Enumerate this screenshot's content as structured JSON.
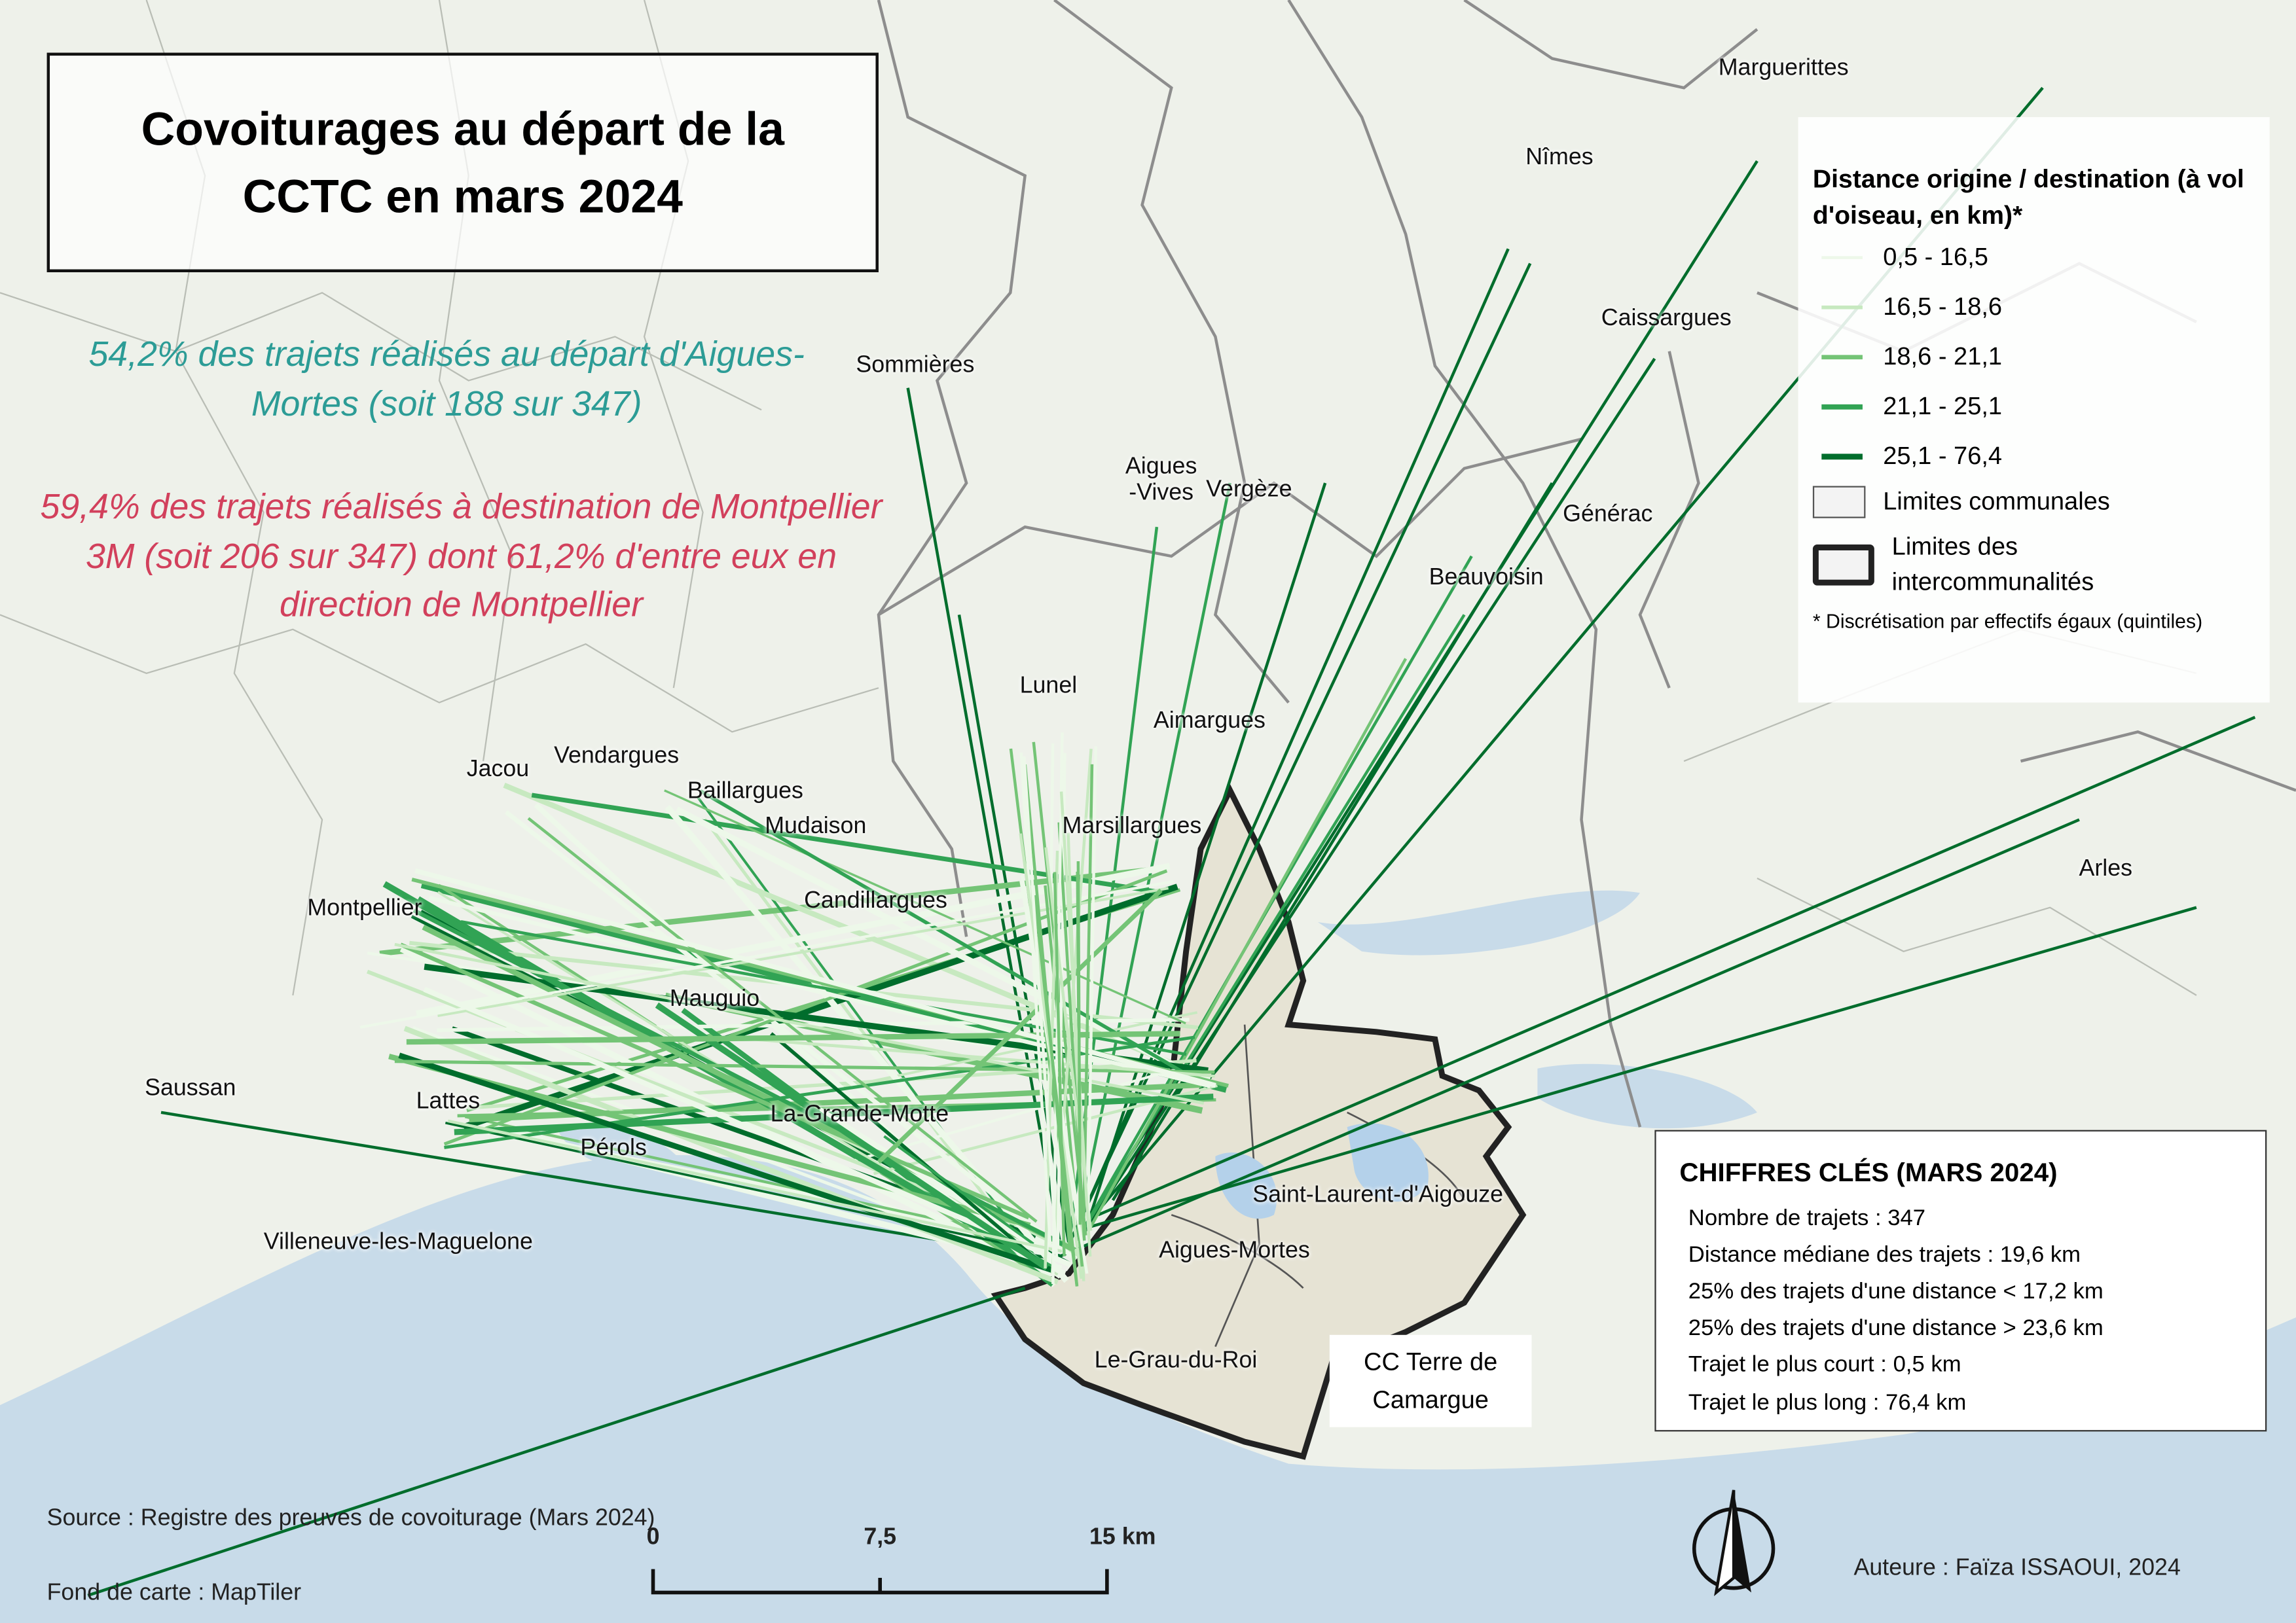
{
  "title": "Covoiturages au départ de la CCTC en mars 2024",
  "highlights": [
    "54,2% des trajets réalisés au départ d'Aigues-Mortes (soit 188 sur 347)",
    "59,4% des trajets réalisés à destination de Montpellier 3M (soit 206 sur 347) dont 61,2% d'entre eux en direction de Montpellier"
  ],
  "places": [
    "Marguerittes",
    "Nîmes",
    "Caissargues",
    "Sommières",
    "Aigues\n-Vives",
    "Vergèze",
    "Générac",
    "Beauvoisin",
    "Lunel",
    "Aimargues",
    "Jacou",
    "Vendargues",
    "Baillargues",
    "Mudaison",
    "Marsillargues",
    "Candillargues",
    "Montpellier",
    "Mauguio",
    "Arles",
    "Saussan",
    "Lattes",
    "La-Grande-Motte",
    "Pérols",
    "Saint-Laurent-d'Aigouze",
    "Aigues-Mortes",
    "Villeneuve-les-Maguelone",
    "Le-Grau-du-Roi"
  ],
  "territory_label": "CC Terre de Camargue",
  "legend": {
    "title": "Distance origine / destination (à vol d'oiseau, en km)*",
    "classes": [
      {
        "label": "0,5 - 16,5",
        "color": "#edf8e9"
      },
      {
        "label": "16,5 - 18,6",
        "color": "#c7e9c0"
      },
      {
        "label": "18,6 - 21,1",
        "color": "#74c476"
      },
      {
        "label": "21,1 - 25,1",
        "color": "#31a354"
      },
      {
        "label": "25,1 - 76,4",
        "color": "#006d2c"
      }
    ],
    "boundaries": [
      "Limites communales",
      "Limites des intercommunalités"
    ],
    "note": "* Discrétisation par effectifs égaux (quintiles)"
  },
  "key_figures": {
    "title": "CHIFFRES CLÉS (MARS 2024)",
    "items": [
      "Nombre de trajets : 347",
      "Distance médiane des trajets : 19,6 km",
      "25% des trajets d'une distance < 17,2 km",
      "25% des trajets d'une distance > 23,6 km",
      "Trajet le plus court : 0,5 km",
      "Trajet le plus long : 76,4 km"
    ]
  },
  "scale_bar": [
    "0",
    "7,5",
    "15 km"
  ],
  "source": "Source : Registre des preuves de covoiturage (Mars 2024)",
  "basemap": "Fond de carte : MapTiler",
  "author": "Auteure : Faïza ISSAOUI, 2024"
}
